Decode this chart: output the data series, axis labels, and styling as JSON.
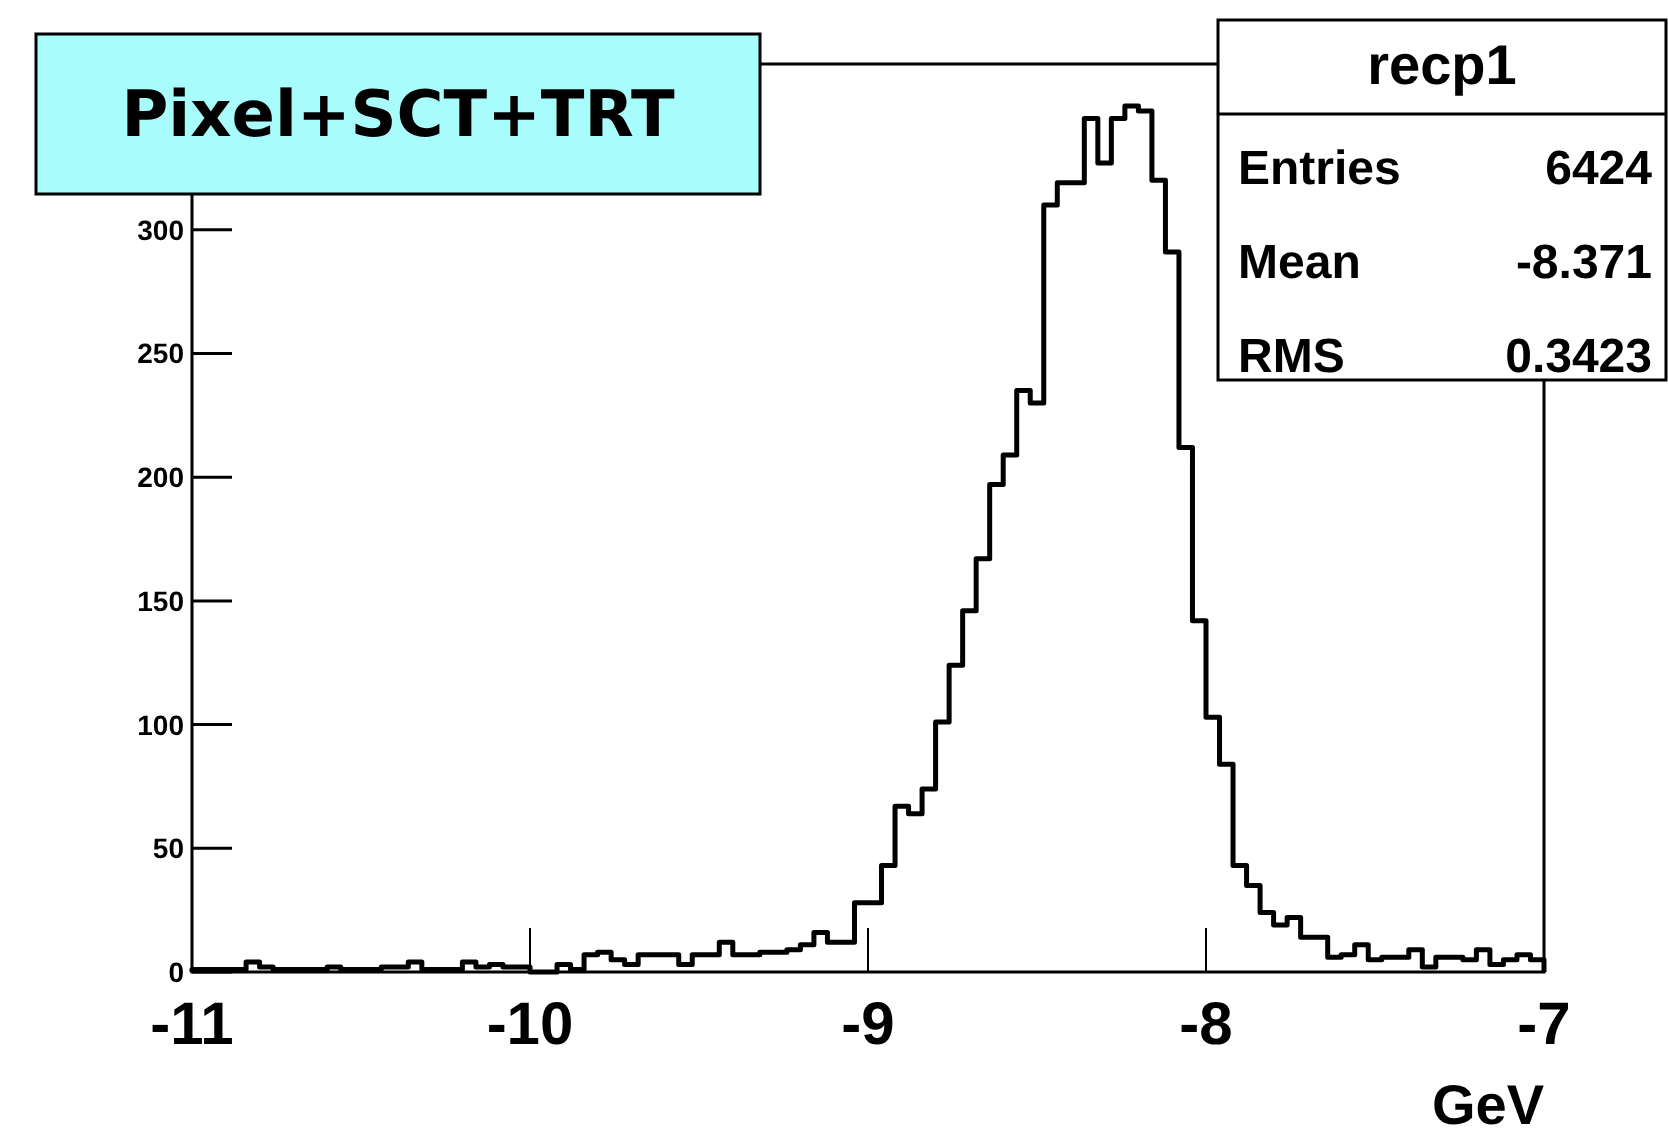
{
  "chart_data": {
    "type": "histogram",
    "title": "Pixel+SCT+TRT",
    "xlabel": "GeV",
    "bins": [
      -11,
      -10.96,
      -10.92,
      -10.88,
      -10.84,
      -10.8,
      -10.76,
      -10.72,
      -10.68,
      -10.64,
      -10.6,
      -10.56,
      -10.52,
      -10.48,
      -10.44,
      -10.4,
      -10.36,
      -10.32,
      -10.28,
      -10.24,
      -10.2,
      -10.16,
      -10.12,
      -10.08,
      -10.04,
      -10,
      -9.96,
      -9.92,
      -9.88,
      -9.84,
      -9.8,
      -9.76,
      -9.72,
      -9.68,
      -9.64,
      -9.6,
      -9.56,
      -9.52,
      -9.48,
      -9.44,
      -9.4,
      -9.36,
      -9.32,
      -9.28,
      -9.24,
      -9.2,
      -9.16,
      -9.12,
      -9.08,
      -9.04,
      -9,
      -8.96,
      -8.92,
      -8.88,
      -8.84,
      -8.8,
      -8.76,
      -8.72,
      -8.68,
      -8.64,
      -8.6,
      -8.56,
      -8.52,
      -8.48,
      -8.44,
      -8.4,
      -8.36,
      -8.32,
      -8.28,
      -8.24,
      -8.2,
      -8.16,
      -8.12,
      -8.08,
      -8.04,
      -8,
      -7.96,
      -7.92,
      -7.88,
      -7.84,
      -7.8,
      -7.76,
      -7.72,
      -7.68,
      -7.64,
      -7.6,
      -7.56,
      -7.52,
      -7.48,
      -7.44,
      -7.4,
      -7.36,
      -7.32,
      -7.28,
      -7.24,
      -7.2,
      -7.16,
      -7.12,
      -7.08,
      -7.04,
      -7
    ],
    "values": [
      1,
      1,
      1,
      1,
      4,
      2,
      1,
      1,
      1,
      1,
      2,
      1,
      1,
      1,
      2,
      2,
      4,
      1,
      1,
      1,
      4,
      2,
      3,
      2,
      2,
      0,
      0,
      3,
      1,
      7,
      8,
      5,
      3,
      7,
      7,
      7,
      3,
      7,
      7,
      12,
      7,
      7,
      8,
      8,
      9,
      11,
      16,
      12,
      12,
      28,
      28,
      43,
      67,
      64,
      74,
      101,
      124,
      146,
      167,
      197,
      209,
      235,
      230,
      310,
      319,
      319,
      345,
      327,
      345,
      350,
      348,
      320,
      291,
      212,
      142,
      103,
      84,
      43,
      35,
      24,
      19,
      22,
      14,
      14,
      6,
      7,
      11,
      5,
      6,
      6,
      9,
      2,
      6,
      6,
      5,
      9,
      3,
      5,
      7,
      5
    ],
    "color": "#000000",
    "xlim": [
      -11,
      -7
    ],
    "xticks": [
      -11,
      -10,
      -9,
      -8,
      -7
    ],
    "ylim": [
      0,
      367
    ],
    "yticks": [
      0,
      50,
      100,
      150,
      200,
      250,
      300
    ],
    "grid": false,
    "annotations": [
      "recp1",
      "Entries 6424",
      "Mean -8.371",
      "RMS 0.3423"
    ]
  }
}
